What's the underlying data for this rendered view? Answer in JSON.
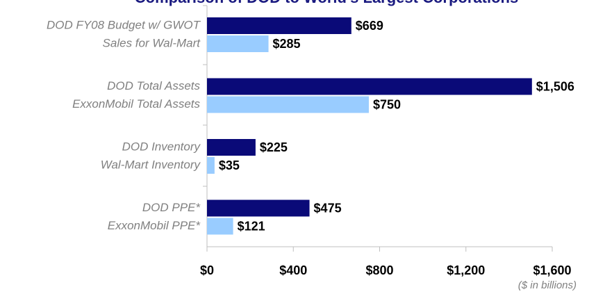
{
  "chart_data": {
    "type": "bar",
    "orientation": "horizontal",
    "title": "Comparison of DOD to World's Largest Corporations",
    "categories": [
      "DOD FY08 Budget w/ GWOT",
      "Sales for Wal-Mart",
      "DOD Total Assets",
      "ExxonMobil Total Assets",
      "DOD Inventory",
      "Wal-Mart Inventory",
      "DOD PPE*",
      "ExxonMobil PPE*"
    ],
    "values": [
      669,
      285,
      1506,
      750,
      225,
      35,
      475,
      121
    ],
    "value_labels": [
      "$669",
      "$285",
      "$1,506",
      "$750",
      "$225",
      "$35",
      "$475",
      "$121"
    ],
    "colors": [
      "#0a0a78",
      "#99ccff",
      "#0a0a78",
      "#99ccff",
      "#0a0a78",
      "#99ccff",
      "#0a0a78",
      "#99ccff"
    ],
    "xlim": [
      0,
      1600
    ],
    "xticks": [
      {
        "value": 0,
        "label": "$0"
      },
      {
        "value": 400,
        "label": "$400"
      },
      {
        "value": 800,
        "label": "$800"
      },
      {
        "value": 1200,
        "label": "$1,200"
      },
      {
        "value": 1600,
        "label": "$1,600"
      }
    ],
    "xlabel": "($ in billions)"
  }
}
